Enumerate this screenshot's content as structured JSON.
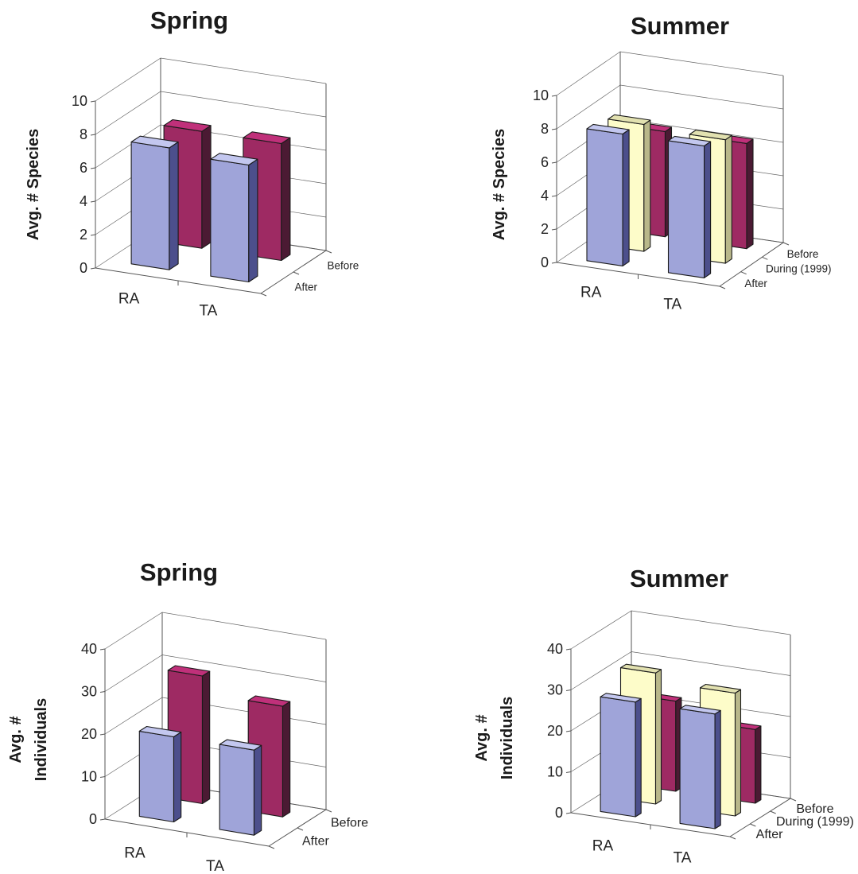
{
  "colors": {
    "After": [
      "#9fa4d9",
      "#4c4f8c",
      "#c3c7ef"
    ],
    "During (1999)": [
      "#fdfcc9",
      "#b9b88a",
      "#e2e1b0"
    ],
    "Before": [
      "#9e2a63",
      "#4b1a33",
      "#c0307a"
    ]
  },
  "chart_data": [
    {
      "type": "bar",
      "title": "Spring",
      "ylabel": "Avg. # Species",
      "ylim": [
        0,
        10
      ],
      "yticks": [
        "0",
        "2",
        "4",
        "6",
        "8",
        "10"
      ],
      "categories": [
        "RA",
        "TA"
      ],
      "series": [
        {
          "name": "After",
          "values": [
            7.3,
            7.0
          ]
        },
        {
          "name": "Before",
          "values": [
            7.0,
            7.0
          ]
        }
      ]
    },
    {
      "type": "bar",
      "title": "Summer",
      "ylabel": "Avg. # Species",
      "ylim": [
        0,
        10
      ],
      "yticks": [
        "0",
        "2",
        "4",
        "6",
        "8",
        "10"
      ],
      "categories": [
        "RA",
        "TA"
      ],
      "series": [
        {
          "name": "After",
          "values": [
            7.9,
            7.9
          ]
        },
        {
          "name": "During (1999)",
          "values": [
            7.6,
            7.4
          ]
        },
        {
          "name": "Before",
          "values": [
            6.3,
            6.3
          ]
        }
      ]
    },
    {
      "type": "bar",
      "title": "Spring",
      "ylabel": [
        "Avg. #",
        "Individuals"
      ],
      "ylim": [
        0,
        40
      ],
      "yticks": [
        "0",
        "10",
        "20",
        "30",
        "40"
      ],
      "categories": [
        "RA",
        "TA"
      ],
      "series": [
        {
          "name": "After",
          "values": [
            20.0,
            20.0
          ]
        },
        {
          "name": "Before",
          "values": [
            30.0,
            26.0
          ]
        }
      ]
    },
    {
      "type": "bar",
      "title": "Summer",
      "ylabel": [
        "Avg. #",
        "Individuals"
      ],
      "ylim": [
        0,
        40
      ],
      "yticks": [
        "0",
        "10",
        "20",
        "30",
        "40"
      ],
      "categories": [
        "RA",
        "TA"
      ],
      "series": [
        {
          "name": "After",
          "values": [
            28.0,
            28.0
          ]
        },
        {
          "name": "During (1999)",
          "values": [
            32.0,
            30.0
          ]
        },
        {
          "name": "Before",
          "values": [
            22.0,
            18.0
          ]
        }
      ]
    }
  ]
}
